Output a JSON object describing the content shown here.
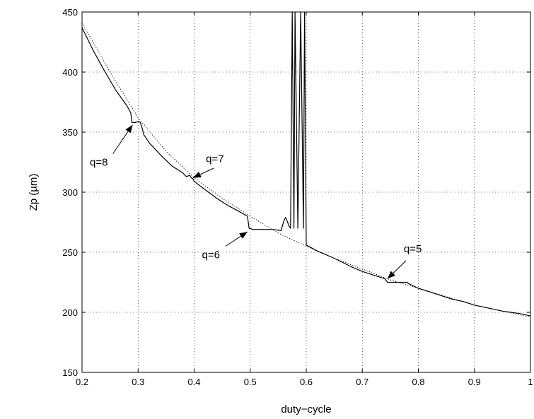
{
  "chart_data": {
    "type": "line",
    "xlabel": "duty−cycle",
    "ylabel": "Zp (µm)",
    "xlim": [
      0.2,
      1.0
    ],
    "ylim": [
      150,
      450
    ],
    "xticks": [
      0.2,
      0.3,
      0.4,
      0.5,
      0.6,
      0.7,
      0.8,
      0.9,
      1.0
    ],
    "xtick_labels": [
      "0.2",
      "0.3",
      "0.4",
      "0.5",
      "0.6",
      "0.7",
      "0.8",
      "0.9",
      "1"
    ],
    "yticks": [
      150,
      200,
      250,
      300,
      350,
      400,
      450
    ],
    "ytick_labels": [
      "150",
      "200",
      "250",
      "300",
      "350",
      "400",
      "450"
    ],
    "grid": true,
    "series": [
      {
        "style": "solid",
        "color": "#000000",
        "x": [
          0.2,
          0.22,
          0.24,
          0.26,
          0.28,
          0.287,
          0.289,
          0.295,
          0.301,
          0.304,
          0.308,
          0.31,
          0.32,
          0.34,
          0.36,
          0.38,
          0.386,
          0.392,
          0.395,
          0.398,
          0.4,
          0.42,
          0.44,
          0.46,
          0.48,
          0.495,
          0.498,
          0.505,
          0.52,
          0.54,
          0.555,
          0.56,
          0.563,
          0.566,
          0.569,
          0.572,
          0.575,
          0.578,
          0.58,
          0.585,
          0.59,
          0.595,
          0.597,
          0.6,
          0.62,
          0.65,
          0.68,
          0.7,
          0.72,
          0.74,
          0.745,
          0.75,
          0.76,
          0.77,
          0.78,
          0.782,
          0.8,
          0.82,
          0.84,
          0.86,
          0.88,
          0.9,
          0.92,
          0.95,
          0.98,
          1.0
        ],
        "y": [
          437,
          418,
          401,
          385,
          372,
          366,
          358,
          358,
          359,
          358,
          352,
          348,
          341,
          331,
          322,
          316,
          313,
          314,
          312,
          311,
          309,
          302,
          295,
          289,
          284,
          280,
          270,
          269,
          269,
          269,
          268,
          276,
          279,
          276,
          272,
          270,
          450,
          270,
          450,
          270,
          450,
          270,
          450,
          256,
          251,
          245,
          238,
          234,
          231,
          228,
          225,
          225,
          225,
          225,
          225,
          224,
          220,
          217,
          214,
          211,
          209,
          206,
          204,
          201,
          199,
          197
        ]
      },
      {
        "style": "dotted",
        "color": "#000000",
        "x": [
          0.2,
          0.25,
          0.3,
          0.35,
          0.4,
          0.45,
          0.5,
          0.55,
          0.6,
          0.65,
          0.7,
          0.75,
          0.8,
          0.85,
          0.9,
          0.95,
          1.0
        ],
        "y": [
          441,
          400,
          362,
          334,
          312,
          295,
          280,
          266,
          255,
          245,
          236,
          227,
          220,
          213,
          206,
          201,
          196
        ]
      }
    ],
    "annotations": [
      {
        "text": "q=8",
        "text_x": 0.23,
        "text_y": 322,
        "arrow_from": [
          0.255,
          332
        ],
        "arrow_to": [
          0.29,
          356
        ]
      },
      {
        "text": "q=7",
        "text_x": 0.437,
        "text_y": 325,
        "arrow_from": [
          0.435,
          320
        ],
        "arrow_to": [
          0.398,
          312
        ]
      },
      {
        "text": "q=6",
        "text_x": 0.43,
        "text_y": 245,
        "arrow_from": [
          0.456,
          255
        ],
        "arrow_to": [
          0.495,
          267
        ]
      },
      {
        "text": "q=5",
        "text_x": 0.79,
        "text_y": 250,
        "arrow_from": [
          0.778,
          243
        ],
        "arrow_to": [
          0.745,
          228
        ]
      }
    ]
  }
}
